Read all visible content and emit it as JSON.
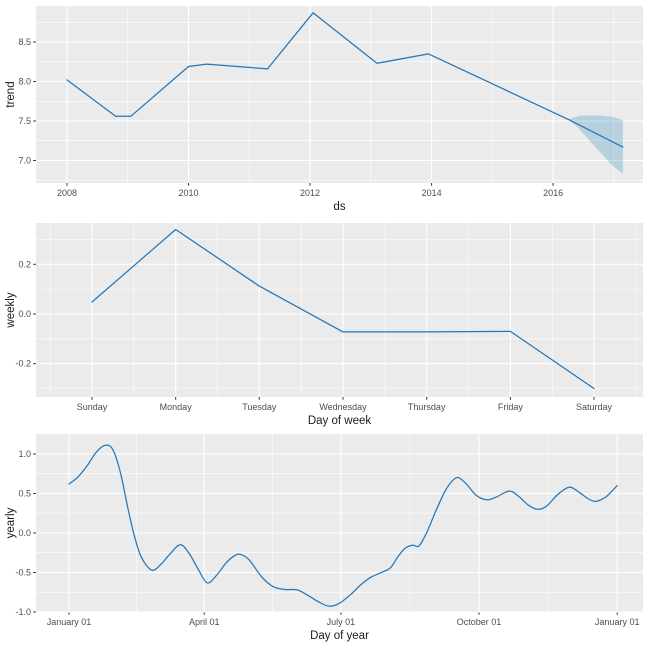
{
  "figure": {
    "description": "Prophet forecast components plot with three stacked panels"
  },
  "colors": {
    "page_bg": "#FFFFFF",
    "panel_bg": "#EBEBEB",
    "grid": "#FFFFFF",
    "line": "#2577B7",
    "band_fill": "#0072B2",
    "band_opacity": 0.22,
    "tick_label": "#4D4D4D",
    "axis_title": "#1A1A1A",
    "tick_mark": "#333333"
  },
  "chart_data": [
    {
      "id": "trend",
      "type": "line",
      "title": "",
      "xlabel": "ds",
      "ylabel": "trend",
      "grid": true,
      "legend": "none",
      "smooth": false,
      "x_domain": [
        2007.49,
        2017.48
      ],
      "y_domain": [
        6.715,
        8.956
      ],
      "x_ticks": [
        {
          "v": 2008,
          "label": "2008"
        },
        {
          "v": 2010,
          "label": "2010"
        },
        {
          "v": 2012,
          "label": "2012"
        },
        {
          "v": 2014,
          "label": "2014"
        },
        {
          "v": 2016,
          "label": "2016"
        }
      ],
      "x_minor": [
        2009,
        2011,
        2013,
        2015,
        2017
      ],
      "y_ticks": [
        {
          "v": 7.0,
          "label": "7.0"
        },
        {
          "v": 7.5,
          "label": "7.5"
        },
        {
          "v": 8.0,
          "label": "8.0"
        },
        {
          "v": 8.5,
          "label": "8.5"
        }
      ],
      "y_minor": [
        6.75,
        7.25,
        7.75,
        8.25,
        8.75
      ],
      "points": [
        [
          2008.0,
          8.02
        ],
        [
          2008.8,
          7.56
        ],
        [
          2009.05,
          7.56
        ],
        [
          2010.0,
          8.19
        ],
        [
          2010.3,
          8.22
        ],
        [
          2011.3,
          8.16
        ],
        [
          2012.05,
          8.87
        ],
        [
          2013.1,
          8.23
        ],
        [
          2013.95,
          8.35
        ],
        [
          2016.25,
          7.52
        ],
        [
          2017.15,
          7.17
        ]
      ],
      "band": {
        "upper": [
          [
            2016.25,
            7.52
          ],
          [
            2016.45,
            7.57
          ],
          [
            2016.78,
            7.57
          ],
          [
            2017.0,
            7.55
          ],
          [
            2017.15,
            7.51
          ]
        ],
        "lower": [
          [
            2016.25,
            7.52
          ],
          [
            2016.42,
            7.41
          ],
          [
            2016.58,
            7.27
          ],
          [
            2016.78,
            7.1
          ],
          [
            2016.97,
            6.94
          ],
          [
            2017.08,
            6.87
          ],
          [
            2017.15,
            6.83
          ]
        ]
      }
    },
    {
      "id": "weekly",
      "type": "line",
      "title": "",
      "xlabel": "Day of week",
      "ylabel": "weekly",
      "grid": true,
      "legend": "none",
      "smooth": false,
      "x_domain": [
        -0.669,
        6.585
      ],
      "y_domain": [
        -0.334,
        0.366
      ],
      "x_ticks": [
        {
          "v": 0,
          "label": "Sunday"
        },
        {
          "v": 1,
          "label": "Monday"
        },
        {
          "v": 2,
          "label": "Tuesday"
        },
        {
          "v": 3,
          "label": "Wednesday"
        },
        {
          "v": 4,
          "label": "Thursday"
        },
        {
          "v": 5,
          "label": "Friday"
        },
        {
          "v": 6,
          "label": "Saturday"
        }
      ],
      "x_minor": [
        -0.5,
        0.5,
        1.5,
        2.5,
        3.5,
        4.5,
        5.5,
        6.5
      ],
      "y_ticks": [
        {
          "v": -0.2,
          "label": "-0.2"
        },
        {
          "v": 0.0,
          "label": "0.0"
        },
        {
          "v": 0.2,
          "label": "0.2"
        }
      ],
      "y_minor": [
        -0.3,
        -0.1,
        0.1,
        0.3
      ],
      "points": [
        [
          0,
          0.048
        ],
        [
          1,
          0.34
        ],
        [
          2,
          0.112
        ],
        [
          3,
          -0.072
        ],
        [
          4,
          -0.072
        ],
        [
          5,
          -0.07
        ],
        [
          6,
          -0.3
        ]
      ]
    },
    {
      "id": "yearly",
      "type": "line",
      "title": "",
      "xlabel": "Day of year",
      "ylabel": "yearly",
      "grid": true,
      "legend": "none",
      "smooth": true,
      "x_domain": [
        -22,
        382.2
      ],
      "y_domain": [
        -1.0,
        1.253
      ],
      "x_ticks": [
        {
          "v": 0,
          "label": "January 01"
        },
        {
          "v": 90,
          "label": "April 01"
        },
        {
          "v": 181,
          "label": "July 01"
        },
        {
          "v": 273,
          "label": "October 01"
        },
        {
          "v": 365,
          "label": "January 01"
        }
      ],
      "x_minor": [
        45,
        135.5,
        227,
        319
      ],
      "y_ticks": [
        {
          "v": -1.0,
          "label": "-1.0"
        },
        {
          "v": -0.5,
          "label": "-0.5"
        },
        {
          "v": 0.0,
          "label": "0.0"
        },
        {
          "v": 0.5,
          "label": "0.5"
        },
        {
          "v": 1.0,
          "label": "1.0"
        }
      ],
      "y_minor": [
        -0.75,
        -0.25,
        0.25,
        0.75
      ],
      "points": [
        [
          0,
          0.62
        ],
        [
          6,
          0.71
        ],
        [
          12,
          0.85
        ],
        [
          18,
          1.02
        ],
        [
          24,
          1.11
        ],
        [
          29,
          1.06
        ],
        [
          34,
          0.78
        ],
        [
          39,
          0.33
        ],
        [
          43,
          0.0
        ],
        [
          48,
          -0.3
        ],
        [
          55,
          -0.47
        ],
        [
          61,
          -0.4
        ],
        [
          67,
          -0.27
        ],
        [
          74,
          -0.15
        ],
        [
          80,
          -0.26
        ],
        [
          86,
          -0.46
        ],
        [
          92,
          -0.63
        ],
        [
          98,
          -0.54
        ],
        [
          105,
          -0.37
        ],
        [
          110,
          -0.29
        ],
        [
          114,
          -0.27
        ],
        [
          120,
          -0.34
        ],
        [
          128,
          -0.55
        ],
        [
          136,
          -0.68
        ],
        [
          144,
          -0.715
        ],
        [
          152,
          -0.72
        ],
        [
          160,
          -0.8
        ],
        [
          166,
          -0.87
        ],
        [
          173,
          -0.925
        ],
        [
          180,
          -0.89
        ],
        [
          188,
          -0.77
        ],
        [
          194,
          -0.66
        ],
        [
          201,
          -0.56
        ],
        [
          208,
          -0.5
        ],
        [
          214,
          -0.44
        ],
        [
          219,
          -0.3
        ],
        [
          224,
          -0.19
        ],
        [
          229,
          -0.155
        ],
        [
          233,
          -0.165
        ],
        [
          238,
          0.0
        ],
        [
          244,
          0.27
        ],
        [
          251,
          0.55
        ],
        [
          258,
          0.7
        ],
        [
          264,
          0.63
        ],
        [
          271,
          0.48
        ],
        [
          278,
          0.42
        ],
        [
          284,
          0.45
        ],
        [
          293,
          0.53
        ],
        [
          299,
          0.47
        ],
        [
          306,
          0.35
        ],
        [
          312,
          0.3
        ],
        [
          318,
          0.34
        ],
        [
          325,
          0.48
        ],
        [
          333,
          0.58
        ],
        [
          340,
          0.51
        ],
        [
          346,
          0.43
        ],
        [
          351,
          0.4
        ],
        [
          357,
          0.45
        ],
        [
          361,
          0.52
        ],
        [
          365,
          0.6
        ]
      ]
    }
  ]
}
